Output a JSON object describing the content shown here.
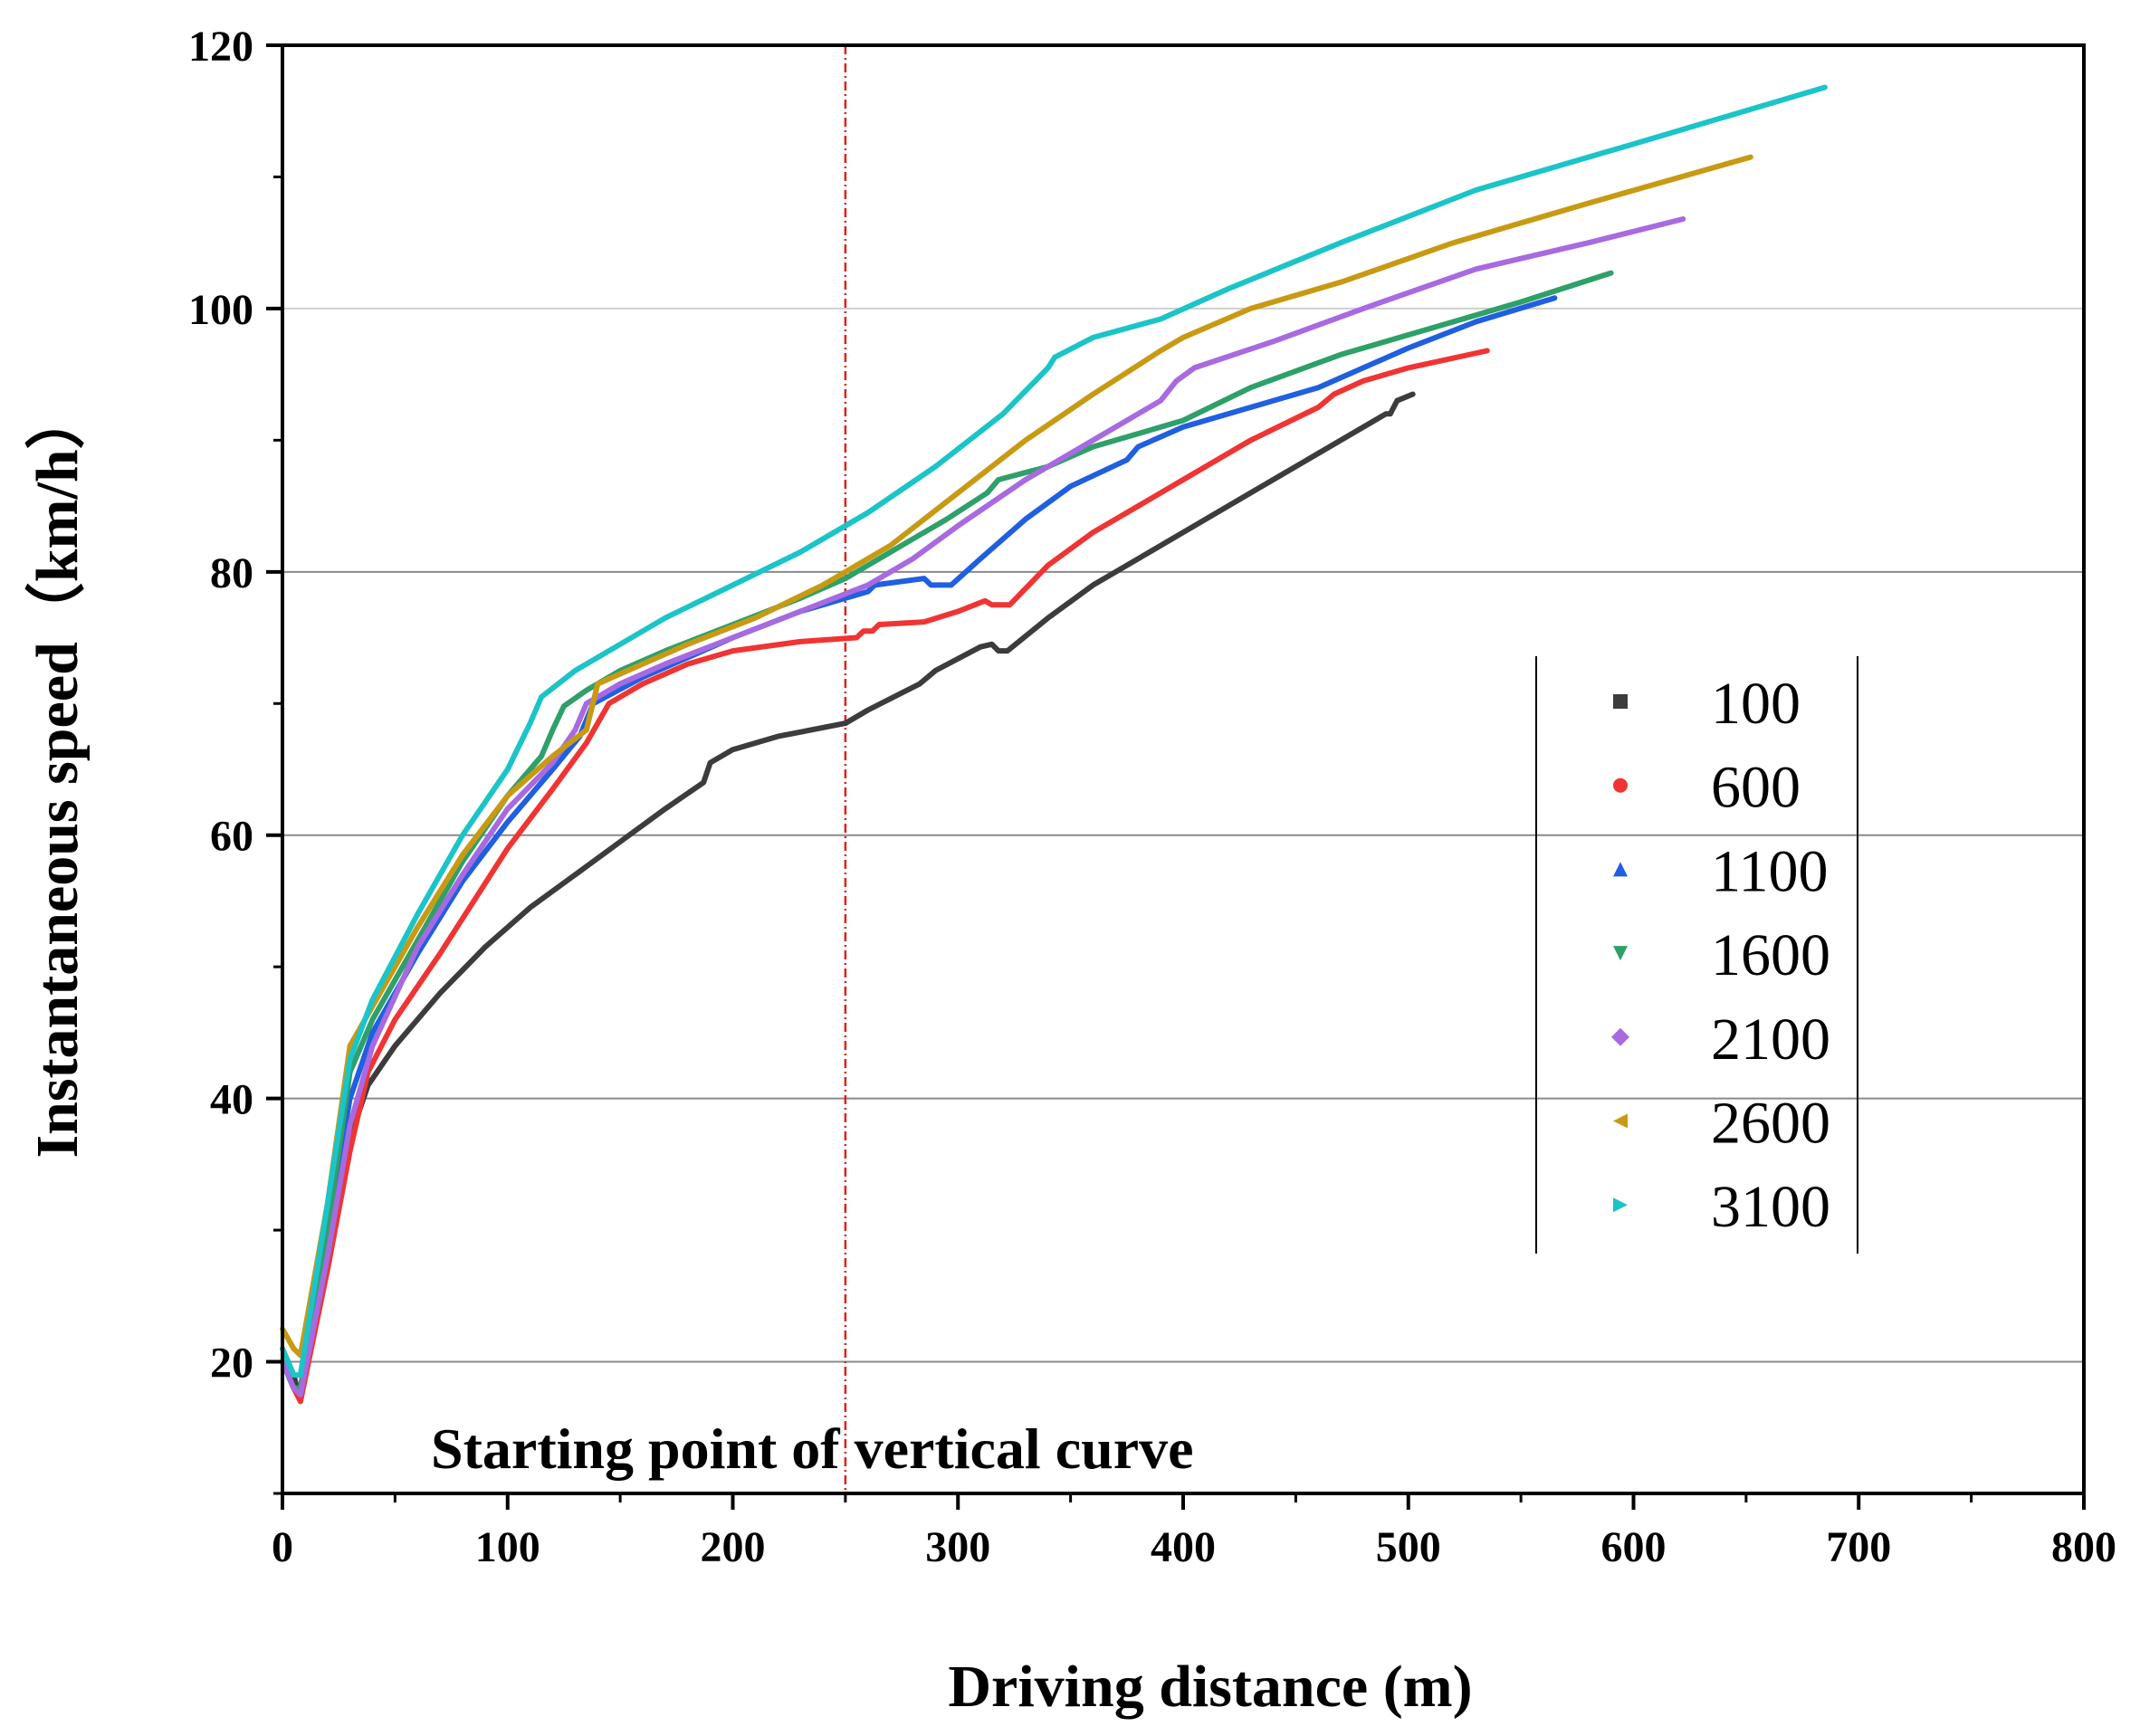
{
  "chart_data": {
    "type": "line",
    "title": "",
    "xlabel": "Driving distance (m)",
    "ylabel": "Instantaneous speed（km/h）",
    "xlim": [
      0,
      800
    ],
    "ylim": [
      10,
      120
    ],
    "xticks": [
      0,
      100,
      200,
      300,
      400,
      500,
      600,
      700,
      800
    ],
    "yticks": [
      20,
      40,
      60,
      80,
      100,
      120
    ],
    "grid_y": [
      20,
      40,
      60,
      80,
      100
    ],
    "vertical_marker": {
      "x": 250,
      "label": "Starting point of vertical curve",
      "color": "#e0201b"
    },
    "legend_position": "right",
    "series": [
      {
        "name": "100",
        "color": "#3c3c3c",
        "marker": "square",
        "points": [
          [
            0,
            21
          ],
          [
            5,
            19
          ],
          [
            8,
            17
          ],
          [
            20,
            28
          ],
          [
            30,
            37
          ],
          [
            38,
            41
          ],
          [
            50,
            44
          ],
          [
            70,
            48
          ],
          [
            90,
            51.5
          ],
          [
            110,
            54.5
          ],
          [
            130,
            57
          ],
          [
            150,
            59.5
          ],
          [
            170,
            62
          ],
          [
            187,
            64
          ],
          [
            190,
            65.5
          ],
          [
            200,
            66.5
          ],
          [
            220,
            67.5
          ],
          [
            250,
            68.5
          ],
          [
            260,
            69.5
          ],
          [
            283,
            71.5
          ],
          [
            290,
            72.5
          ],
          [
            310,
            74.3
          ],
          [
            315,
            74.5
          ],
          [
            318,
            74
          ],
          [
            322,
            74
          ],
          [
            340,
            76.5
          ],
          [
            360,
            79
          ],
          [
            380,
            81
          ],
          [
            400,
            83
          ],
          [
            430,
            86
          ],
          [
            460,
            89
          ],
          [
            490,
            92
          ],
          [
            492,
            92
          ],
          [
            495,
            93
          ],
          [
            502,
            93.5
          ]
        ]
      },
      {
        "name": "600",
        "color": "#f03434",
        "marker": "circle",
        "points": [
          [
            0,
            20
          ],
          [
            5,
            18
          ],
          [
            8,
            17
          ],
          [
            20,
            27
          ],
          [
            30,
            36
          ],
          [
            38,
            42
          ],
          [
            50,
            46
          ],
          [
            70,
            51
          ],
          [
            100,
            59
          ],
          [
            120,
            63.5
          ],
          [
            135,
            67
          ],
          [
            145,
            70
          ],
          [
            160,
            71.5
          ],
          [
            180,
            73
          ],
          [
            200,
            74
          ],
          [
            230,
            74.7
          ],
          [
            255,
            75
          ],
          [
            258,
            75.5
          ],
          [
            262,
            75.5
          ],
          [
            265,
            76
          ],
          [
            285,
            76.2
          ],
          [
            300,
            77
          ],
          [
            312,
            77.8
          ],
          [
            315,
            77.5
          ],
          [
            323,
            77.5
          ],
          [
            340,
            80.5
          ],
          [
            360,
            83
          ],
          [
            380,
            85
          ],
          [
            400,
            87
          ],
          [
            430,
            90
          ],
          [
            460,
            92.5
          ],
          [
            467,
            93.5
          ],
          [
            480,
            94.5
          ],
          [
            500,
            95.5
          ],
          [
            535,
            96.8
          ]
        ]
      },
      {
        "name": "1100",
        "color": "#1f5fe0",
        "marker": "triangle-up",
        "points": [
          [
            0,
            20
          ],
          [
            5,
            18
          ],
          [
            8,
            18
          ],
          [
            20,
            30
          ],
          [
            30,
            40
          ],
          [
            40,
            45
          ],
          [
            60,
            51
          ],
          [
            80,
            56.5
          ],
          [
            100,
            61
          ],
          [
            120,
            65
          ],
          [
            132,
            67.5
          ],
          [
            138,
            70
          ],
          [
            160,
            72
          ],
          [
            180,
            73.5
          ],
          [
            200,
            75
          ],
          [
            230,
            77
          ],
          [
            250,
            78
          ],
          [
            260,
            78.5
          ],
          [
            263,
            79
          ],
          [
            285,
            79.5
          ],
          [
            288,
            79
          ],
          [
            297,
            79
          ],
          [
            310,
            81
          ],
          [
            330,
            84
          ],
          [
            350,
            86.5
          ],
          [
            375,
            88.5
          ],
          [
            380,
            89.5
          ],
          [
            400,
            91
          ],
          [
            430,
            92.5
          ],
          [
            460,
            94
          ],
          [
            500,
            97
          ],
          [
            530,
            99
          ],
          [
            565,
            100.8
          ]
        ]
      },
      {
        "name": "1600",
        "color": "#2ea069",
        "marker": "triangle-down",
        "points": [
          [
            0,
            20
          ],
          [
            5,
            18
          ],
          [
            8,
            18
          ],
          [
            20,
            30
          ],
          [
            30,
            42
          ],
          [
            40,
            46
          ],
          [
            60,
            52
          ],
          [
            80,
            58
          ],
          [
            100,
            63
          ],
          [
            115,
            66
          ],
          [
            120,
            68
          ],
          [
            125,
            69.8
          ],
          [
            135,
            71
          ],
          [
            150,
            72.5
          ],
          [
            170,
            74
          ],
          [
            200,
            76
          ],
          [
            230,
            78
          ],
          [
            250,
            79.5
          ],
          [
            270,
            81.5
          ],
          [
            295,
            84
          ],
          [
            313,
            86
          ],
          [
            318,
            87
          ],
          [
            340,
            88
          ],
          [
            360,
            89.5
          ],
          [
            380,
            90.5
          ],
          [
            400,
            91.5
          ],
          [
            430,
            94
          ],
          [
            470,
            96.5
          ],
          [
            510,
            98.5
          ],
          [
            550,
            100.5
          ],
          [
            590,
            102.7
          ]
        ]
      },
      {
        "name": "2100",
        "color": "#a76ae0",
        "marker": "diamond",
        "points": [
          [
            0,
            20
          ],
          [
            5,
            18
          ],
          [
            8,
            17.5
          ],
          [
            20,
            28
          ],
          [
            30,
            38
          ],
          [
            40,
            44
          ],
          [
            60,
            51.5
          ],
          [
            80,
            57
          ],
          [
            100,
            62
          ],
          [
            120,
            65.5
          ],
          [
            130,
            68
          ],
          [
            135,
            70
          ],
          [
            150,
            71.5
          ],
          [
            170,
            73
          ],
          [
            200,
            75
          ],
          [
            230,
            77
          ],
          [
            260,
            79
          ],
          [
            280,
            81
          ],
          [
            300,
            83.5
          ],
          [
            330,
            87
          ],
          [
            360,
            90
          ],
          [
            390,
            93
          ],
          [
            397,
            94.5
          ],
          [
            405,
            95.5
          ],
          [
            440,
            97.5
          ],
          [
            480,
            100
          ],
          [
            530,
            103
          ],
          [
            580,
            105
          ],
          [
            622,
            106.8
          ]
        ]
      },
      {
        "name": "2600",
        "color": "#c89a14",
        "marker": "triangle-left",
        "points": [
          [
            0,
            22.5
          ],
          [
            5,
            21
          ],
          [
            8,
            20.5
          ],
          [
            20,
            32
          ],
          [
            30,
            44
          ],
          [
            40,
            47
          ],
          [
            60,
            53
          ],
          [
            80,
            58.5
          ],
          [
            100,
            63
          ],
          [
            120,
            66
          ],
          [
            135,
            68
          ],
          [
            140,
            71.5
          ],
          [
            160,
            73
          ],
          [
            180,
            74.5
          ],
          [
            210,
            76.5
          ],
          [
            240,
            79
          ],
          [
            270,
            82
          ],
          [
            300,
            86
          ],
          [
            330,
            90
          ],
          [
            360,
            93.5
          ],
          [
            390,
            96.8
          ],
          [
            400,
            97.8
          ],
          [
            430,
            100
          ],
          [
            470,
            102
          ],
          [
            520,
            105
          ],
          [
            580,
            108
          ],
          [
            652,
            111.5
          ]
        ]
      },
      {
        "name": "3100",
        "color": "#1bc4c8",
        "marker": "triangle-right",
        "points": [
          [
            0,
            21
          ],
          [
            5,
            19
          ],
          [
            8,
            19
          ],
          [
            20,
            32
          ],
          [
            30,
            43
          ],
          [
            40,
            47.5
          ],
          [
            60,
            54
          ],
          [
            80,
            60
          ],
          [
            100,
            65
          ],
          [
            110,
            68.5
          ],
          [
            115,
            70.5
          ],
          [
            130,
            72.5
          ],
          [
            150,
            74.5
          ],
          [
            170,
            76.5
          ],
          [
            200,
            79
          ],
          [
            230,
            81.5
          ],
          [
            260,
            84.5
          ],
          [
            290,
            88
          ],
          [
            320,
            92
          ],
          [
            340,
            95.5
          ],
          [
            343,
            96.3
          ],
          [
            360,
            97.8
          ],
          [
            390,
            99.2
          ],
          [
            420,
            101.5
          ],
          [
            470,
            105
          ],
          [
            530,
            109
          ],
          [
            600,
            112.5
          ],
          [
            685,
            116.8
          ]
        ]
      }
    ]
  }
}
